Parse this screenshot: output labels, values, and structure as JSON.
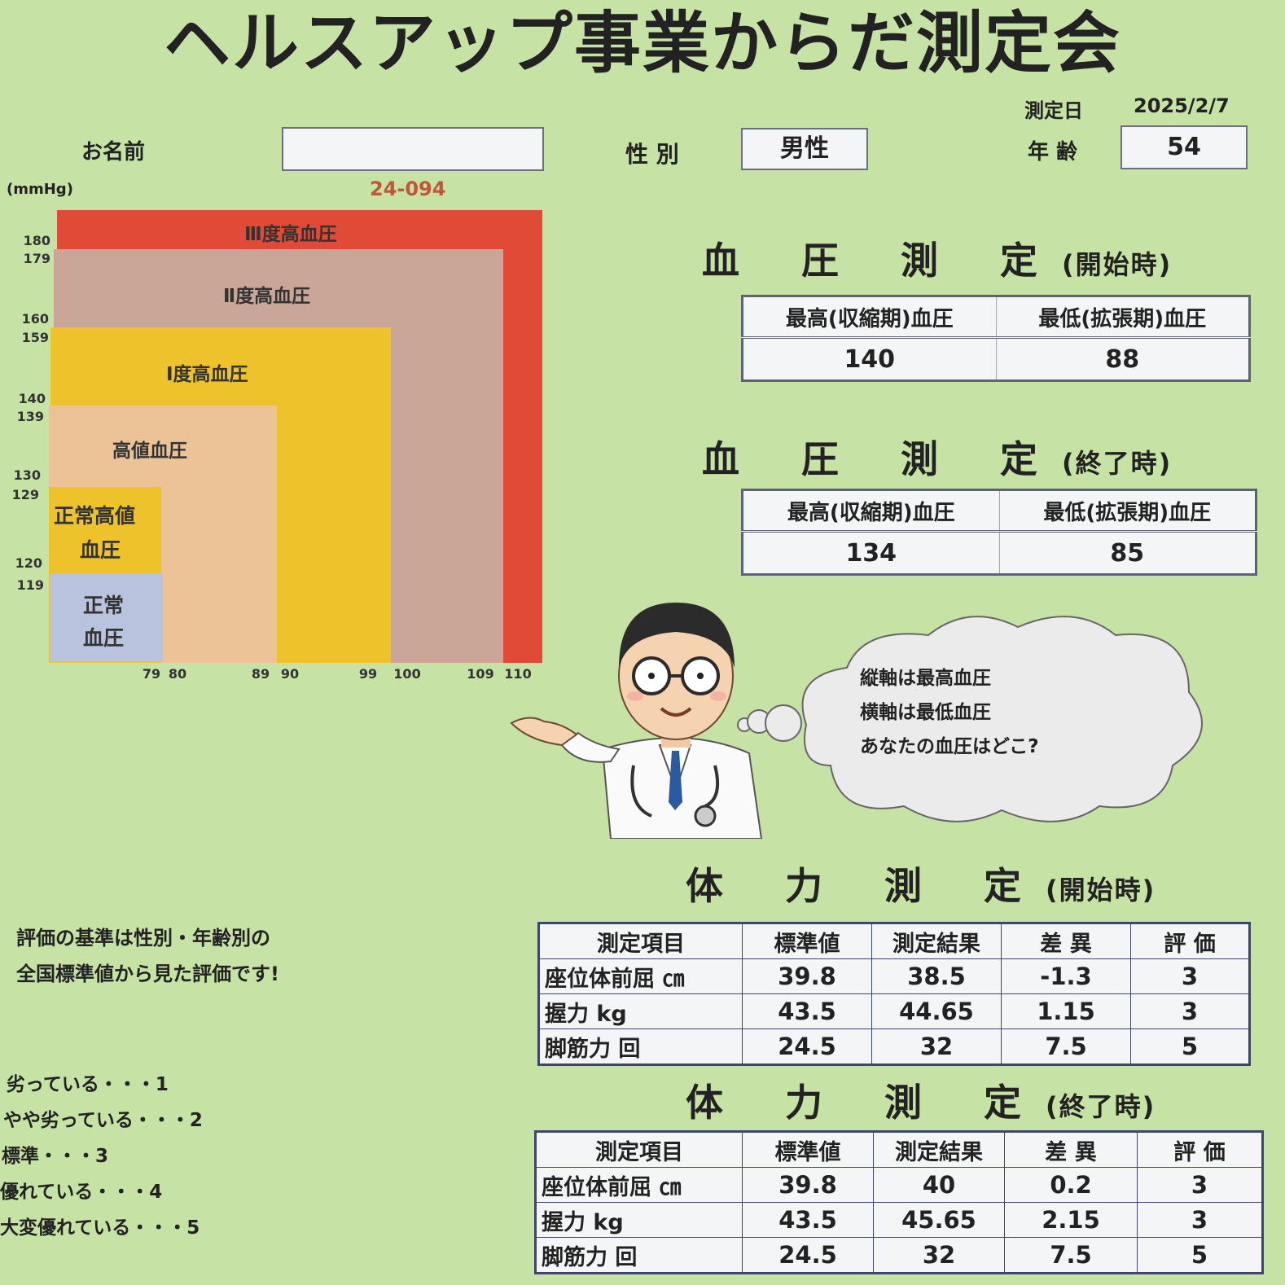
{
  "header": {
    "title": "ヘルスアップ事業からだ測定会",
    "date_label": "測定日",
    "date_value": "2025/2/7",
    "name_label": "お名前",
    "name_value": "",
    "gender_label": "性 別",
    "gender_value": "男性",
    "age_label": "年 齢",
    "age_value": "54",
    "id_code": "24-094"
  },
  "bp_chart": {
    "unit": "(mmHg)",
    "zones": [
      {
        "label": "Ⅲ度高血圧",
        "color": "#e04a37"
      },
      {
        "label": "Ⅱ度高血圧",
        "color": "#c9a697"
      },
      {
        "label": "Ⅰ度高血圧",
        "color": "#edc22a"
      },
      {
        "label": "高値血圧",
        "color": "#ecc397"
      },
      {
        "label_line1": "正常高値",
        "label_line2": "血圧",
        "color": "#edc22a"
      },
      {
        "label_line1": "正常",
        "label_line2": "血圧",
        "color": "#b9c3de"
      }
    ],
    "y_ticks": [
      "180",
      "179",
      "160",
      "159",
      "140",
      "139",
      "130",
      "129",
      "120",
      "119"
    ],
    "x_ticks": [
      "79",
      "80",
      "89",
      "90",
      "99",
      "100",
      "109",
      "110"
    ]
  },
  "bp_start": {
    "title": "血 圧 測 定",
    "subtitle": "(開始時)",
    "col_systolic": "最高(収縮期)血圧",
    "col_diastolic": "最低(拡張期)血圧",
    "systolic": "140",
    "diastolic": "88"
  },
  "bp_end": {
    "title": "血 圧 測 定",
    "subtitle": "(終了時)",
    "col_systolic": "最高(収縮期)血圧",
    "col_diastolic": "最低(拡張期)血圧",
    "systolic": "134",
    "diastolic": "85"
  },
  "speech": {
    "line1": "縦軸は最高血圧",
    "line2": "横軸は最低血圧",
    "line3": "あなたの血圧はどこ?"
  },
  "fitness_start": {
    "title": "体 力 測 定",
    "subtitle": "(開始時)",
    "headers": [
      "測定項目",
      "標準値",
      "測定結果",
      "差 異",
      "評 価"
    ],
    "rows": [
      {
        "item": "座位体前屈 ㎝",
        "standard": "39.8",
        "result": "38.5",
        "diff": "-1.3",
        "rating": "3"
      },
      {
        "item": "握力 kg",
        "standard": "43.5",
        "result": "44.65",
        "diff": "1.15",
        "rating": "3"
      },
      {
        "item": "脚筋力 回",
        "standard": "24.5",
        "result": "32",
        "diff": "7.5",
        "rating": "5"
      }
    ]
  },
  "fitness_end": {
    "title": "体 力 測 定",
    "subtitle": "(終了時)",
    "headers": [
      "測定項目",
      "標準値",
      "測定結果",
      "差 異",
      "評 価"
    ],
    "rows": [
      {
        "item": "座位体前屈 ㎝",
        "standard": "39.8",
        "result": "40",
        "diff": "0.2",
        "rating": "3"
      },
      {
        "item": "握力 kg",
        "standard": "43.5",
        "result": "45.65",
        "diff": "2.15",
        "rating": "3"
      },
      {
        "item": "脚筋力 回",
        "standard": "24.5",
        "result": "32",
        "diff": "7.5",
        "rating": "5"
      }
    ]
  },
  "notes": {
    "line1": "評価の基準は性別・年齢別の",
    "line2": "全国標準値から見た評価です!"
  },
  "rating_scale": [
    "劣っている・・・1",
    "やや劣っている・・・2",
    "標準・・・3",
    "優れている・・・4",
    "大変優れている・・・5"
  ]
}
